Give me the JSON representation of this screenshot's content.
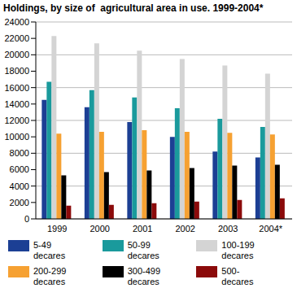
{
  "chart_data": {
    "type": "bar",
    "title": "Holdings, by size of  agricultural area in use. 1999-2004*",
    "categories": [
      "1999",
      "2000",
      "2001",
      "2002",
      "2003",
      "2004*"
    ],
    "series": [
      {
        "name": "5-49 decares",
        "color": "#1c3f94",
        "values": [
          14500,
          13600,
          11800,
          10000,
          8200,
          7500
        ]
      },
      {
        "name": "50-99 decares",
        "color": "#1a9a9c",
        "values": [
          16700,
          15700,
          14800,
          13500,
          12200,
          11200
        ]
      },
      {
        "name": "100-199 decares",
        "color": "#d4d4d4",
        "values": [
          22300,
          21400,
          20500,
          19500,
          18700,
          17700
        ]
      },
      {
        "name": "200-299 decares",
        "color": "#f6a132",
        "values": [
          10400,
          10600,
          10800,
          10600,
          10500,
          10300
        ]
      },
      {
        "name": "300-499 decares",
        "color": "#000000",
        "values": [
          5300,
          5700,
          5900,
          6200,
          6500,
          6600
        ]
      },
      {
        "name": "500- decares",
        "color": "#8b0a0a",
        "values": [
          1600,
          1700,
          1900,
          2100,
          2300,
          2500
        ]
      }
    ],
    "ylim": [
      0,
      24000
    ],
    "yticks": [
      0,
      2000,
      4000,
      6000,
      8000,
      10000,
      12000,
      14000,
      16000,
      18000,
      20000,
      22000,
      24000
    ],
    "grid": true,
    "legend": "bottom"
  }
}
